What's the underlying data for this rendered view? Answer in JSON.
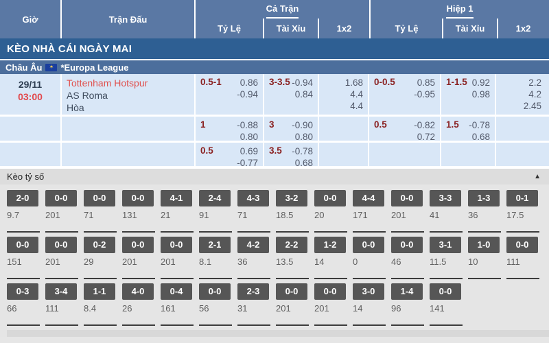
{
  "table_header": {
    "time": "Giờ",
    "match": "Trận Đấu",
    "full_time": "Cả Trận",
    "first_half": "Hiệp 1",
    "handicap": "Tỷ Lệ",
    "over_under": "Tài Xỉu",
    "one_x_two": "1x2"
  },
  "banner": {
    "title": "KÈO NHÀ CÁI NGÀY MAI"
  },
  "league": {
    "region": "Châu Âu",
    "name": "*Europa League"
  },
  "match": {
    "date": "29/11",
    "time": "03:00",
    "teams": {
      "home": "Tottenham Hotspur",
      "away": "AS Roma",
      "draw": "Hòa"
    },
    "odds_rows": [
      {
        "ft_hdp": "0.5-1",
        "ft_hdp_odds": [
          "0.86",
          "-0.94"
        ],
        "ft_ou": "3-3.5",
        "ft_ou_odds": [
          "-0.94",
          "0.84"
        ],
        "ft_1x2": [
          "1.68",
          "4.4",
          "4.4"
        ],
        "h1_hdp": "0-0.5",
        "h1_hdp_odds": [
          "0.85",
          "-0.95"
        ],
        "h1_ou": "1-1.5",
        "h1_ou_odds": [
          "0.92",
          "0.98"
        ],
        "h1_1x2": [
          "2.2",
          "4.2",
          "2.45"
        ]
      },
      {
        "ft_hdp": "1",
        "ft_hdp_odds": [
          "-0.88",
          "0.80"
        ],
        "ft_ou": "3",
        "ft_ou_odds": [
          "-0.90",
          "0.80"
        ],
        "ft_1x2": [],
        "h1_hdp": "0.5",
        "h1_hdp_odds": [
          "-0.82",
          "0.72"
        ],
        "h1_ou": "1.5",
        "h1_ou_odds": [
          "-0.78",
          "0.68"
        ],
        "h1_1x2": []
      },
      {
        "ft_hdp": "0.5",
        "ft_hdp_odds": [
          "0.69",
          "-0.77"
        ],
        "ft_ou": "3.5",
        "ft_ou_odds": [
          "-0.78",
          "0.68"
        ],
        "ft_1x2": [],
        "h1_hdp": "",
        "h1_hdp_odds": [],
        "h1_ou": "",
        "h1_ou_odds": [],
        "h1_1x2": []
      }
    ]
  },
  "score_section": {
    "title": "Kèo tỷ số",
    "collapse_icon": "▲",
    "rows": [
      [
        {
          "score": "2-0",
          "odds": "9.7"
        },
        {
          "score": "0-0",
          "odds": "201"
        },
        {
          "score": "0-0",
          "odds": "71"
        },
        {
          "score": "0-0",
          "odds": "131"
        },
        {
          "score": "4-1",
          "odds": "21"
        },
        {
          "score": "2-4",
          "odds": "91"
        },
        {
          "score": "4-3",
          "odds": "71"
        },
        {
          "score": "3-2",
          "odds": "18.5"
        },
        {
          "score": "0-0",
          "odds": "20"
        },
        {
          "score": "4-4",
          "odds": "171"
        },
        {
          "score": "0-0",
          "odds": "201"
        },
        {
          "score": "3-3",
          "odds": "41"
        },
        {
          "score": "1-3",
          "odds": "36"
        },
        {
          "score": "0-1",
          "odds": "17.5"
        }
      ],
      [
        {
          "score": "0-0",
          "odds": "151"
        },
        {
          "score": "0-0",
          "odds": "201"
        },
        {
          "score": "0-2",
          "odds": "29"
        },
        {
          "score": "0-0",
          "odds": "201"
        },
        {
          "score": "0-0",
          "odds": "201"
        },
        {
          "score": "2-1",
          "odds": "8.1"
        },
        {
          "score": "4-2",
          "odds": "36"
        },
        {
          "score": "2-2",
          "odds": "13.5"
        },
        {
          "score": "1-2",
          "odds": "14"
        },
        {
          "score": "0-0",
          "odds": "0"
        },
        {
          "score": "0-0",
          "odds": "46"
        },
        {
          "score": "3-1",
          "odds": "11.5"
        },
        {
          "score": "1-0",
          "odds": "10"
        },
        {
          "score": "0-0",
          "odds": "111"
        }
      ],
      [
        {
          "score": "0-3",
          "odds": "66"
        },
        {
          "score": "3-4",
          "odds": "111"
        },
        {
          "score": "1-1",
          "odds": "8.4"
        },
        {
          "score": "4-0",
          "odds": "26"
        },
        {
          "score": "0-4",
          "odds": "161"
        },
        {
          "score": "0-0",
          "odds": "56"
        },
        {
          "score": "2-3",
          "odds": "31"
        },
        {
          "score": "0-0",
          "odds": "201"
        },
        {
          "score": "0-0",
          "odds": "201"
        },
        {
          "score": "3-0",
          "odds": "14"
        },
        {
          "score": "1-4",
          "odds": "96"
        },
        {
          "score": "0-0",
          "odds": "141"
        },
        {
          "score": "",
          "odds": ""
        },
        {
          "score": "",
          "odds": ""
        }
      ]
    ]
  },
  "colors": {
    "header_blue": "#5a78a4",
    "banner_blue": "#2e5f93",
    "league_blue": "#4c6e9c",
    "row_light_blue": "#d9e7f7",
    "handicap_maroon": "#8a2121",
    "home_team_red": "#e0524f",
    "time_red": "#e2494d",
    "score_box_gray": "#565656"
  }
}
